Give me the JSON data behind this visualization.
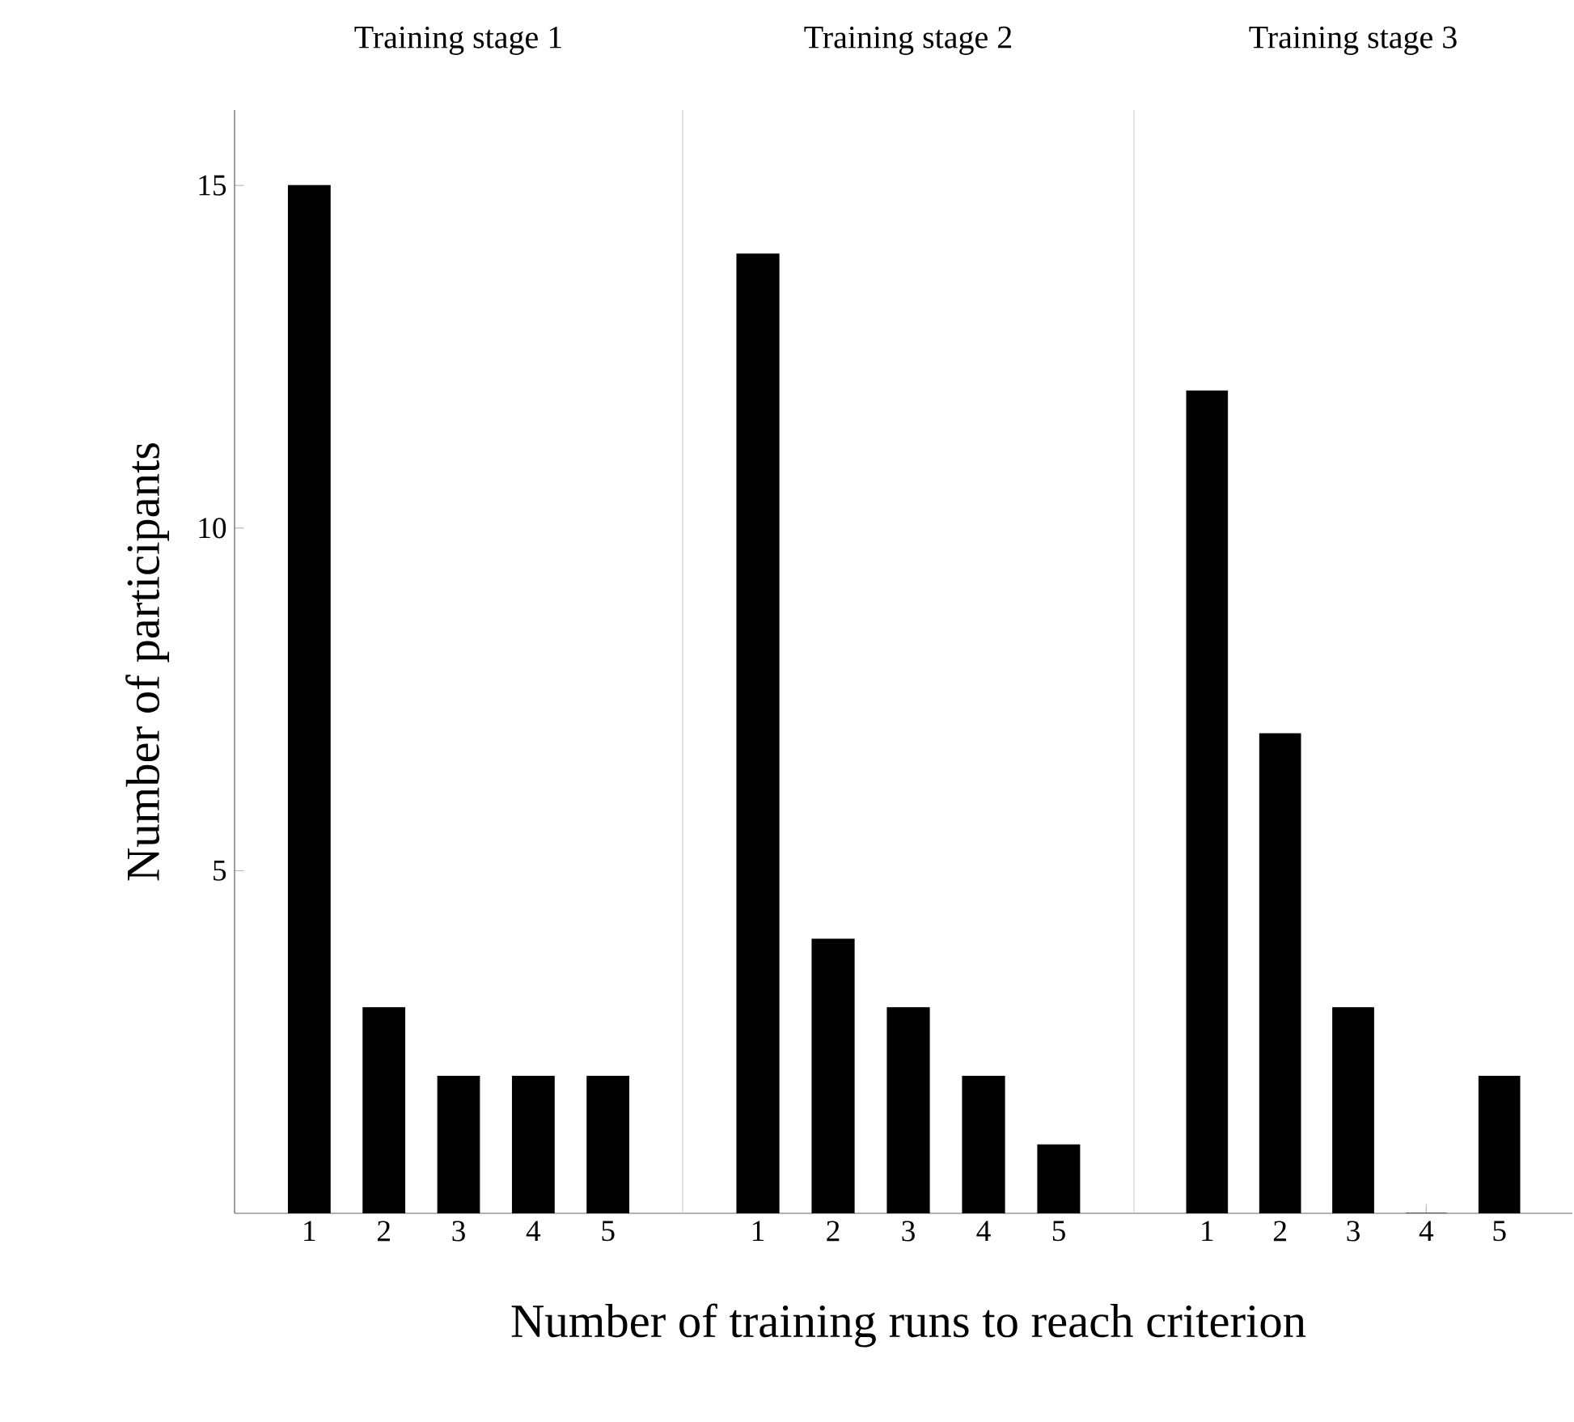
{
  "chart_data": [
    {
      "type": "bar",
      "title": "Training stage 1",
      "categories": [
        "1",
        "2",
        "3",
        "4",
        "5"
      ],
      "values": [
        15,
        3,
        2,
        2,
        2
      ],
      "color": "#000000",
      "ylabel": "Number of participants",
      "ylim": [
        0,
        16.1
      ],
      "yticks": [
        5,
        10,
        15
      ]
    },
    {
      "type": "bar",
      "title": "Training stage 2",
      "categories": [
        "1",
        "2",
        "3",
        "4",
        "5"
      ],
      "values": [
        14,
        4,
        3,
        2,
        1
      ],
      "color": "#000000",
      "xlabel": "Number of training runs to reach criterion",
      "ylim": [
        0,
        16.1
      ],
      "tick_labels": "x"
    },
    {
      "type": "bar",
      "title": "Training stage 3",
      "categories": [
        "1",
        "2",
        "3",
        "4",
        "5"
      ],
      "values": [
        12,
        7,
        3,
        0,
        2
      ],
      "color": "#000000",
      "ylim": [
        0,
        16.1
      ],
      "tick_labels": "x"
    }
  ]
}
